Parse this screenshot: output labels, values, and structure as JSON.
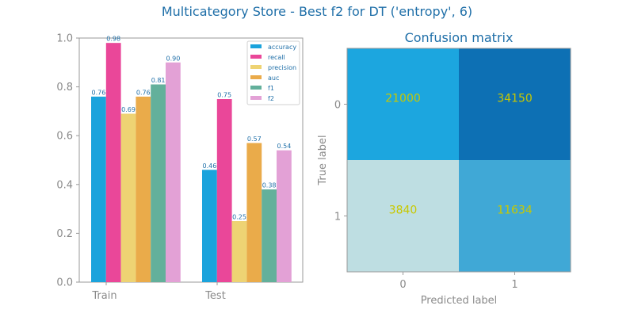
{
  "page": {
    "suptitle": "Multicategory Store - Best f2 for DT ('entropy', 6)"
  },
  "chart_data": [
    {
      "type": "bar",
      "title": "",
      "xlabel": "",
      "ylabel": "",
      "categories": [
        "Train",
        "Test"
      ],
      "ylim": [
        0,
        1.0
      ],
      "yticks": [
        "0.0",
        "0.2",
        "0.4",
        "0.6",
        "0.8",
        "1.0"
      ],
      "legend_position": "top-right",
      "grid": false,
      "series": [
        {
          "name": "accuracy",
          "color": "#1ba3dc",
          "values": [
            0.76,
            0.46
          ],
          "labels": [
            "0.76",
            "0.46"
          ]
        },
        {
          "name": "recall",
          "color": "#ea4799",
          "values": [
            0.98,
            0.75
          ],
          "labels": [
            "0.98",
            "0.75"
          ]
        },
        {
          "name": "precision",
          "color": "#eed373",
          "values": [
            0.69,
            0.25
          ],
          "labels": [
            "0.69",
            "0.25"
          ]
        },
        {
          "name": "auc",
          "color": "#eaab4a",
          "values": [
            0.76,
            0.57
          ],
          "labels": [
            "0.76",
            "0.57"
          ]
        },
        {
          "name": "f1",
          "color": "#63b09b",
          "values": [
            0.81,
            0.38
          ],
          "labels": [
            "0.81",
            "0.38"
          ]
        },
        {
          "name": "f2",
          "color": "#e3a1d6",
          "values": [
            0.9,
            0.54
          ],
          "labels": [
            "0.90",
            "0.54"
          ]
        }
      ]
    },
    {
      "type": "heatmap",
      "title": "Confusion matrix",
      "xlabel": "Predicted label",
      "ylabel": "True label",
      "x_tick_labels": [
        "0",
        "1"
      ],
      "y_tick_labels": [
        "0",
        "1"
      ],
      "values": [
        [
          21000,
          34150
        ],
        [
          3840,
          11634
        ]
      ],
      "value_labels": [
        [
          "21000",
          "34150"
        ],
        [
          "3840",
          "11634"
        ]
      ],
      "cell_colors": [
        [
          "#1ca6df",
          "#0d70b4"
        ],
        [
          "#bedee2",
          "#40a8d6"
        ]
      ],
      "value_color": "#c8c800"
    }
  ]
}
